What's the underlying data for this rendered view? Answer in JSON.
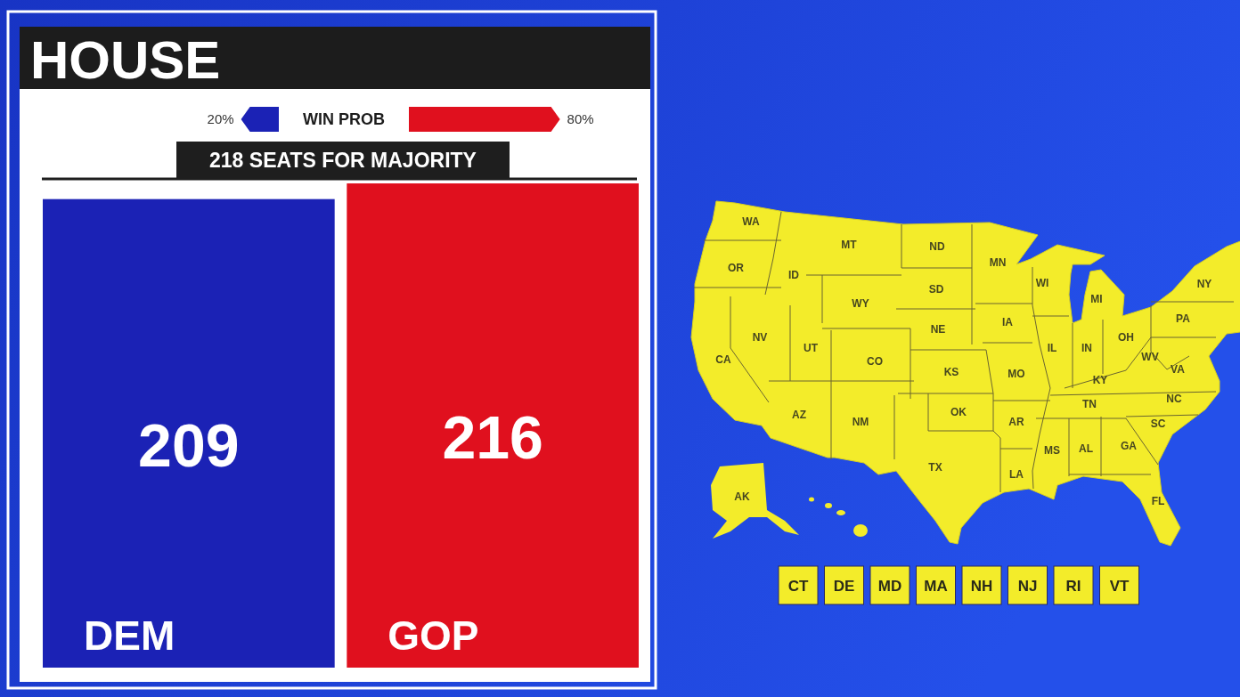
{
  "chart_data": [
    {
      "type": "bar",
      "orientation": "horizontal",
      "title": "HOUSE",
      "categories": [
        "WIN PROB"
      ],
      "values": [
        20
      ],
      "value_labels": [
        "20%"
      ],
      "color": "#1b22b5"
    },
    {
      "type": "bar",
      "orientation": "horizontal",
      "categories": [
        null
      ],
      "values": [
        80
      ],
      "value_labels": [
        "80%"
      ],
      "color": "#e0101e"
    },
    {
      "type": "bar",
      "categories": [
        "DEM",
        "GOP"
      ],
      "values": [
        209,
        216
      ],
      "colors": [
        "#1b22b5",
        "#e0101e"
      ],
      "data_labels": true,
      "ref_lines": [
        {
          "axis": "y",
          "value": 218,
          "label": "218 SEATS FOR MAJORITY",
          "color": "#1e1e1e"
        }
      ]
    },
    {
      "type": "other",
      "color": "#f3ec2a",
      "categories": [
        "WA",
        "OR",
        "CA",
        "ID",
        "NV",
        "MT",
        "WY",
        "UT",
        "AZ",
        "CO",
        "NM",
        "ND",
        "SD",
        "NE",
        "KS",
        "OK",
        "TX",
        "MN",
        "IA",
        "MO",
        "AR",
        "LA",
        "WI",
        "IL",
        "MI",
        "IN",
        "OH",
        "KY",
        "TN",
        "MS",
        "AL",
        "GA",
        "FL",
        "SC",
        "NC",
        "VA",
        "WV",
        "PA",
        "NY",
        "AK",
        "CT",
        "DE",
        "MD",
        "MA",
        "NH",
        "NJ",
        "RI",
        "VT"
      ]
    }
  ]
}
